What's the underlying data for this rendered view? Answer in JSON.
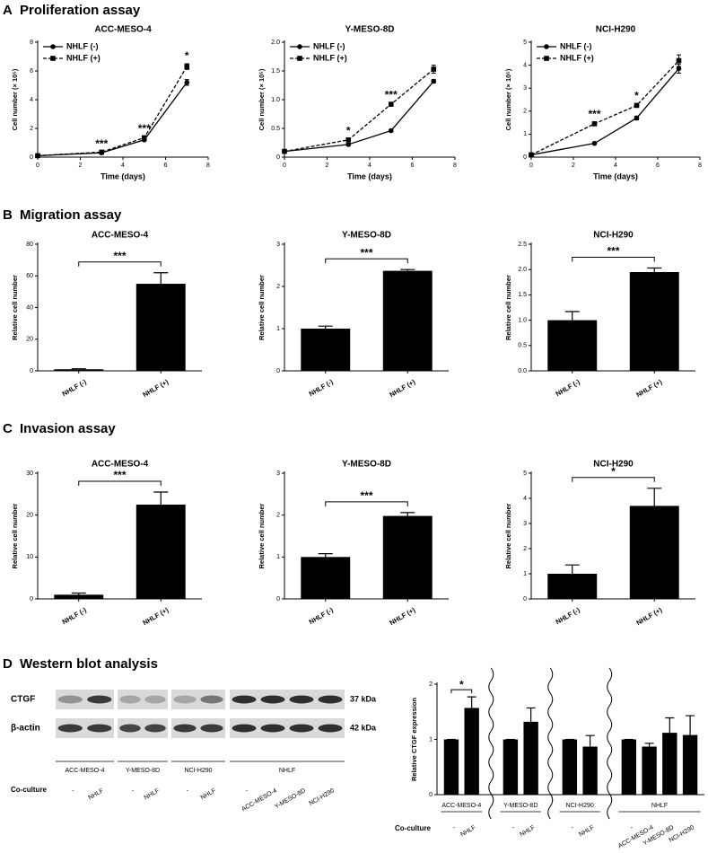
{
  "panels": [
    {
      "letter": "A",
      "title": "Proliferation assay"
    },
    {
      "letter": "B",
      "title": "Migration assay"
    },
    {
      "letter": "C",
      "title": "Invasion assay"
    },
    {
      "letter": "D",
      "title": "Western blot analysis"
    }
  ],
  "chart_data": [
    {
      "type": "line",
      "title": "ACC-MESO-4",
      "x_label": "Time (days)",
      "y_label": "Cell number (× 10⁵)",
      "x": [
        0,
        3,
        5,
        7
      ],
      "xlim": [
        0,
        8
      ],
      "xticks": [
        0,
        2,
        4,
        6,
        8
      ],
      "ylim": [
        0,
        8
      ],
      "yticks": [
        0,
        2,
        4,
        6,
        8
      ],
      "series": [
        {
          "name": "NHLF (-)",
          "color": "#000000",
          "line_style": "solid",
          "marker": "circle",
          "values": [
            0.1,
            0.3,
            1.2,
            5.2
          ],
          "errors": [
            0.02,
            0.05,
            0.08,
            0.2
          ]
        },
        {
          "name": "NHLF (+)",
          "color": "#000000",
          "line_style": "dashed",
          "marker": "square",
          "values": [
            0.1,
            0.35,
            1.35,
            6.3
          ],
          "errors": [
            0.02,
            0.05,
            0.1,
            0.2
          ]
        }
      ],
      "annotations": [
        {
          "text": "***",
          "x": 3
        },
        {
          "text": "***",
          "x": 5
        },
        {
          "text": "*",
          "x": 7
        }
      ]
    },
    {
      "type": "line",
      "title": "Y-MESO-8D",
      "x_label": "Time (days)",
      "y_label": "Cell number (× 10⁵)",
      "x": [
        0,
        3,
        5,
        7
      ],
      "xlim": [
        0,
        8
      ],
      "xticks": [
        0,
        2,
        4,
        6,
        8
      ],
      "ylim": [
        0,
        2
      ],
      "yticks": [
        0,
        0.5,
        {
          "value": 1,
          "label": "1.0"
        },
        1.5,
        {
          "value": 2,
          "label": "2.0"
        }
      ],
      "series": [
        {
          "name": "NHLF (-)",
          "color": "#000000",
          "line_style": "solid",
          "marker": "circle",
          "values": [
            0.1,
            0.22,
            0.46,
            1.32
          ],
          "errors": [
            0.01,
            0.02,
            0.02,
            0.03
          ]
        },
        {
          "name": "NHLF (+)",
          "color": "#000000",
          "line_style": "dashed",
          "marker": "square",
          "values": [
            0.1,
            0.3,
            0.92,
            1.53
          ],
          "errors": [
            0.01,
            0.02,
            0.03,
            0.07
          ]
        }
      ],
      "annotations": [
        {
          "text": "*",
          "x": 3
        },
        {
          "text": "***",
          "x": 5
        }
      ]
    },
    {
      "type": "line",
      "title": "NCI-H290",
      "x_label": "Time (days)",
      "y_label": "Cell number (× 10⁵)",
      "x": [
        0,
        3,
        5,
        7
      ],
      "xlim": [
        0,
        8
      ],
      "xticks": [
        0,
        2,
        4,
        6,
        8
      ],
      "ylim": [
        0,
        5
      ],
      "yticks": [
        0,
        1,
        2,
        3,
        4,
        5
      ],
      "series": [
        {
          "name": "NHLF (-)",
          "color": "#000000",
          "line_style": "solid",
          "marker": "circle",
          "values": [
            0.1,
            0.6,
            1.7,
            3.85
          ],
          "errors": [
            0.02,
            0.05,
            0.08,
            0.2
          ]
        },
        {
          "name": "NHLF (+)",
          "color": "#000000",
          "line_style": "dashed",
          "marker": "square",
          "values": [
            0.1,
            1.45,
            2.25,
            4.2
          ],
          "errors": [
            0.02,
            0.08,
            0.08,
            0.25
          ]
        }
      ],
      "annotations": [
        {
          "text": "***",
          "x": 3
        },
        {
          "text": "*",
          "x": 5
        }
      ]
    },
    {
      "type": "bar",
      "title": "ACC-MESO-4",
      "y_label": "Relative cell number",
      "categories": [
        "NHLF (-)",
        "NHLF (+)"
      ],
      "values": [
        1,
        55
      ],
      "errors": [
        0.3,
        7
      ],
      "color": "#000000",
      "ylim": [
        0,
        80
      ],
      "yticks": [
        0,
        20,
        40,
        60,
        80
      ],
      "significance": "***"
    },
    {
      "type": "bar",
      "title": "Y-MESO-8D",
      "y_label": "Relative cell number",
      "categories": [
        "NHLF (-)",
        "NHLF (+)"
      ],
      "values": [
        1,
        2.37
      ],
      "errors": [
        0.06,
        0.03
      ],
      "color": "#000000",
      "ylim": [
        0,
        3
      ],
      "yticks": [
        0,
        1,
        2,
        3
      ],
      "significance": "***"
    },
    {
      "type": "bar",
      "title": "NCI-H290",
      "y_label": "Relative cell number",
      "categories": [
        "NHLF (-)",
        "NHLF (+)"
      ],
      "values": [
        1,
        1.95
      ],
      "errors": [
        0.17,
        0.08
      ],
      "color": "#000000",
      "ylim": [
        0,
        2.5
      ],
      "yticks": [
        {
          "value": 0,
          "label": "0.0"
        },
        0.5,
        {
          "value": 1,
          "label": "1.0"
        },
        1.5,
        {
          "value": 2,
          "label": "2.0"
        },
        2.5
      ],
      "significance": "***"
    },
    {
      "type": "bar",
      "title": "ACC-MESO-4",
      "y_label": "Relative cell number",
      "categories": [
        "NHLF (-)",
        "NHLF (+)"
      ],
      "values": [
        1,
        22.5
      ],
      "errors": [
        0.4,
        3
      ],
      "color": "#000000",
      "ylim": [
        0,
        30
      ],
      "yticks": [
        0,
        10,
        20,
        30
      ],
      "significance": "***"
    },
    {
      "type": "bar",
      "title": "Y-MESO-8D",
      "y_label": "Relative cell number",
      "categories": [
        "NHLF (-)",
        "NHLF (+)"
      ],
      "values": [
        1,
        1.98
      ],
      "errors": [
        0.08,
        0.08
      ],
      "color": "#000000",
      "ylim": [
        0,
        3
      ],
      "yticks": [
        0,
        1,
        2,
        3
      ],
      "significance": "***"
    },
    {
      "type": "bar",
      "title": "NCI-H290",
      "y_label": "Relative cell number",
      "categories": [
        "NHLF (-)",
        "NHLF (+)"
      ],
      "values": [
        1,
        3.7
      ],
      "errors": [
        0.35,
        0.7
      ],
      "color": "#000000",
      "ylim": [
        0,
        5
      ],
      "yticks": [
        0,
        1,
        2,
        3,
        4,
        5
      ],
      "significance": "*"
    },
    {
      "type": "grouped_bar",
      "y_label": "Relative CTGF expression",
      "x_label": "Co-culture",
      "color": "#000000",
      "ylim": [
        0,
        2
      ],
      "yticks": [
        0,
        1,
        2
      ],
      "groups": [
        {
          "name": "ACC-MESO-4",
          "categories": [
            "-",
            "NHLF"
          ],
          "values": [
            1,
            1.57
          ],
          "errors": [
            0,
            0.2
          ],
          "significance": "*"
        },
        {
          "name": "Y-MESO-8D",
          "categories": [
            "-",
            "NHLF"
          ],
          "values": [
            1,
            1.32
          ],
          "errors": [
            0,
            0.25
          ]
        },
        {
          "name": "NCI-H290",
          "categories": [
            "-",
            "NHLF"
          ],
          "values": [
            1,
            0.87
          ],
          "errors": [
            0,
            0.2
          ]
        },
        {
          "name": "NHLF",
          "categories": [
            "-",
            "ACC-MESO-4",
            "Y-MESO-8D",
            "NCI-H290"
          ],
          "values": [
            1,
            0.87,
            1.12,
            1.08
          ],
          "errors": [
            0,
            0.06,
            0.27,
            0.35
          ]
        }
      ]
    }
  ],
  "western_blot": {
    "rows": [
      {
        "label": "CTGF",
        "size": "37 kDa"
      },
      {
        "label": "β-actin",
        "size": "42 kDa"
      }
    ],
    "row_label": "Co-culture",
    "groups": [
      {
        "name": "ACC-MESO-4",
        "lanes": [
          "-",
          "NHLF"
        ]
      },
      {
        "name": "Y-MESO-8D",
        "lanes": [
          "-",
          "NHLF"
        ]
      },
      {
        "name": "NCI-H290",
        "lanes": [
          "-",
          "NHLF"
        ]
      },
      {
        "name": "NHLF",
        "lanes": [
          "-",
          "ACC-MESO-4",
          "Y-MESO-8D",
          "NCI-H290"
        ]
      }
    ]
  }
}
